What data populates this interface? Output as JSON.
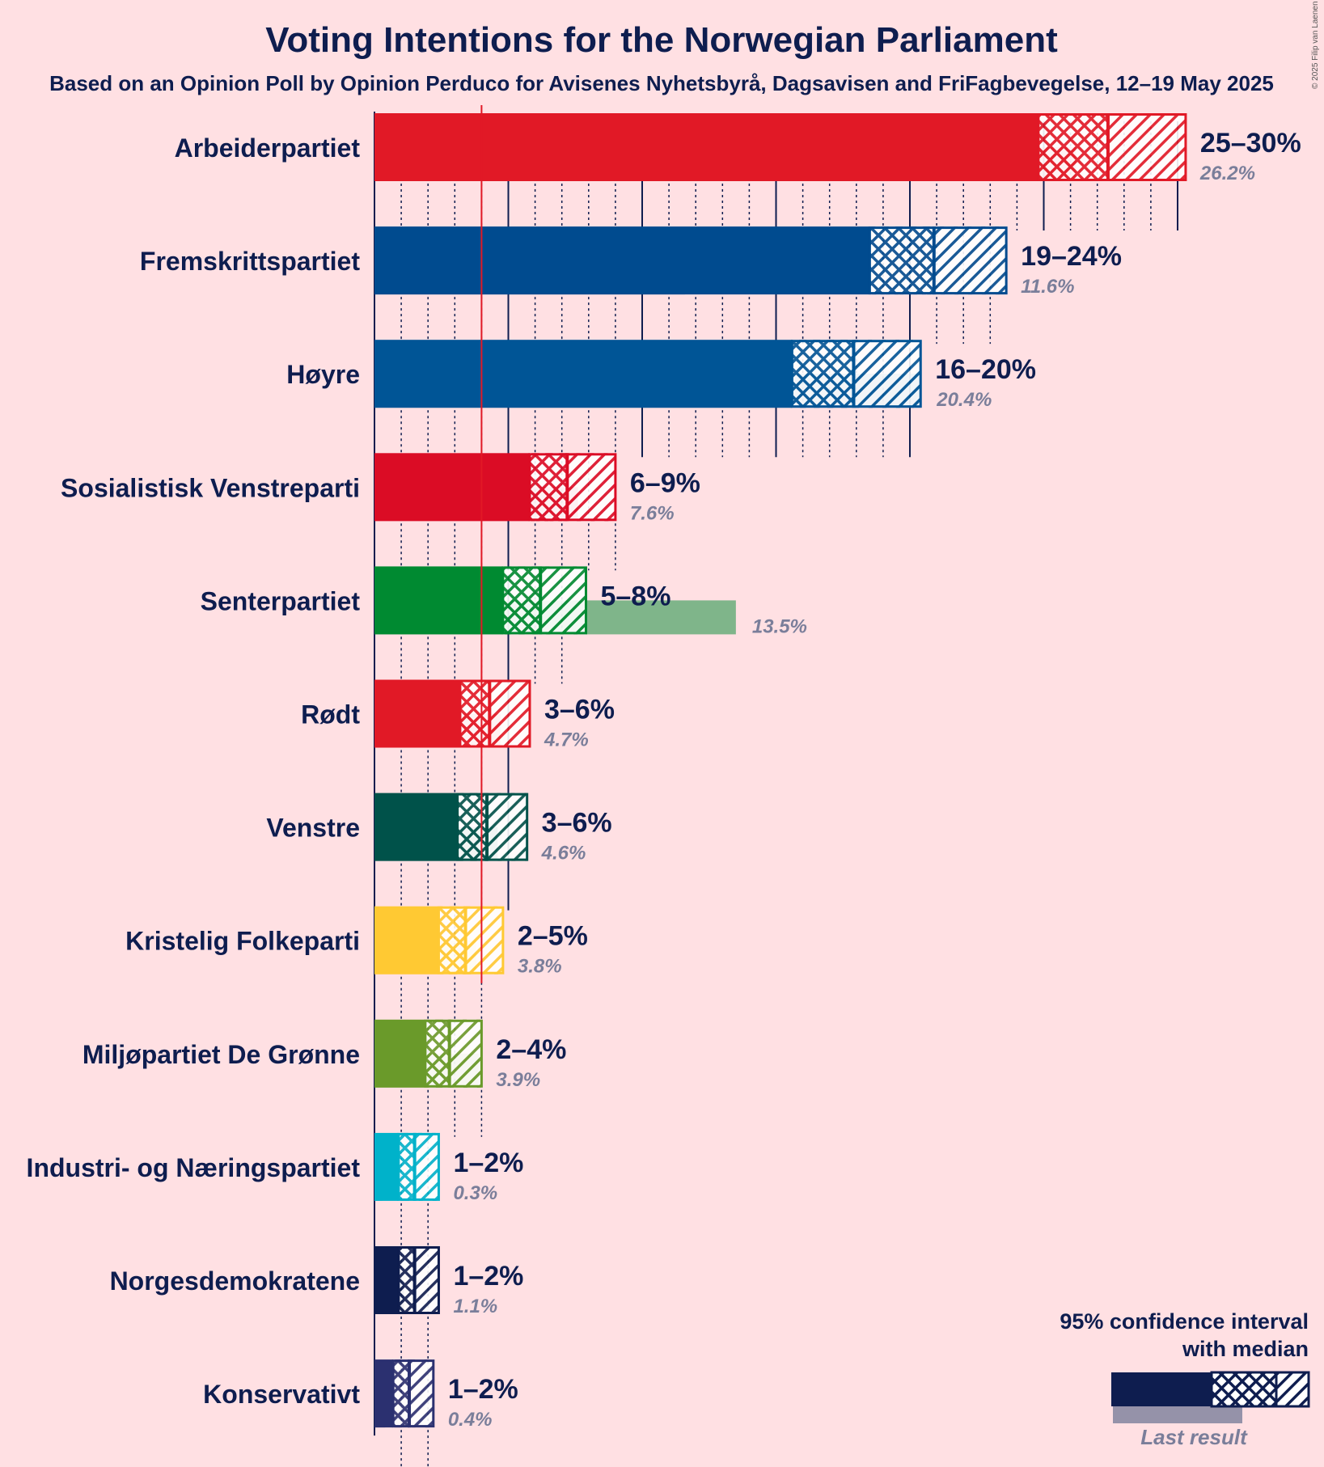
{
  "chart_data": {
    "type": "bar",
    "title": "Voting Intentions for the Norwegian Parliament",
    "subtitle": "Based on an Opinion Poll by Opinion Perduco for Avisenes Nyhetsbyrå, Dagsavisen and FriFagbevegelse, 12–19 May 2025",
    "copyright": "© 2025 Filip van Laenen",
    "xlim": [
      0,
      35
    ],
    "threshold": 4,
    "legend": {
      "line1": "95% confidence interval",
      "line2": "with median",
      "last_result": "Last result",
      "placement": "bottom-right"
    },
    "parties": [
      {
        "name": "Arbeiderpartiet",
        "color": "#E11926",
        "ci_low": 24.8,
        "median": 27.4,
        "ci_high": 30.3,
        "range_label": "25–30%",
        "last": 26.2,
        "last_label": "26.2%"
      },
      {
        "name": "Fremskrittspartiet",
        "color": "#004B8F",
        "ci_low": 18.5,
        "median": 20.9,
        "ci_high": 23.6,
        "range_label": "19–24%",
        "last": 11.6,
        "last_label": "11.6%"
      },
      {
        "name": "Høyre",
        "color": "#005596",
        "ci_low": 15.6,
        "median": 17.9,
        "ci_high": 20.4,
        "range_label": "16–20%",
        "last": 20.4,
        "last_label": "20.4%"
      },
      {
        "name": "Sosialistisk Venstreparti",
        "color": "#DB0C25",
        "ci_low": 5.8,
        "median": 7.2,
        "ci_high": 9.0,
        "range_label": "6–9%",
        "last": 7.6,
        "last_label": "7.6%"
      },
      {
        "name": "Senterpartiet",
        "color": "#008A31",
        "ci_low": 4.8,
        "median": 6.2,
        "ci_high": 7.9,
        "range_label": "5–8%",
        "last": 13.5,
        "last_label": "13.5%"
      },
      {
        "name": "Rødt",
        "color": "#E11926",
        "ci_low": 3.2,
        "median": 4.3,
        "ci_high": 5.8,
        "range_label": "3–6%",
        "last": 4.7,
        "last_label": "4.7%"
      },
      {
        "name": "Venstre",
        "color": "#00524A",
        "ci_low": 3.1,
        "median": 4.2,
        "ci_high": 5.7,
        "range_label": "3–6%",
        "last": 4.6,
        "last_label": "4.6%"
      },
      {
        "name": "Kristelig Folkeparti",
        "color": "#FFC933",
        "ci_low": 2.4,
        "median": 3.4,
        "ci_high": 4.8,
        "range_label": "2–5%",
        "last": 3.8,
        "last_label": "3.8%"
      },
      {
        "name": "Miljøpartiet De Grønne",
        "color": "#6A9A2A",
        "ci_low": 1.9,
        "median": 2.8,
        "ci_high": 4.0,
        "range_label": "2–4%",
        "last": 3.9,
        "last_label": "3.9%"
      },
      {
        "name": "Industri- og Næringspartiet",
        "color": "#00B2CA",
        "ci_low": 0.9,
        "median": 1.5,
        "ci_high": 2.4,
        "range_label": "1–2%",
        "last": 0.3,
        "last_label": "0.3%"
      },
      {
        "name": "Norgesdemokratene",
        "color": "#0E1D4F",
        "ci_low": 0.9,
        "median": 1.5,
        "ci_high": 2.4,
        "range_label": "1–2%",
        "last": 1.1,
        "last_label": "1.1%"
      },
      {
        "name": "Konservativt",
        "color": "#2B3070",
        "ci_low": 0.7,
        "median": 1.3,
        "ci_high": 2.2,
        "range_label": "1–2%",
        "last": 0.4,
        "last_label": "0.4%"
      }
    ]
  }
}
